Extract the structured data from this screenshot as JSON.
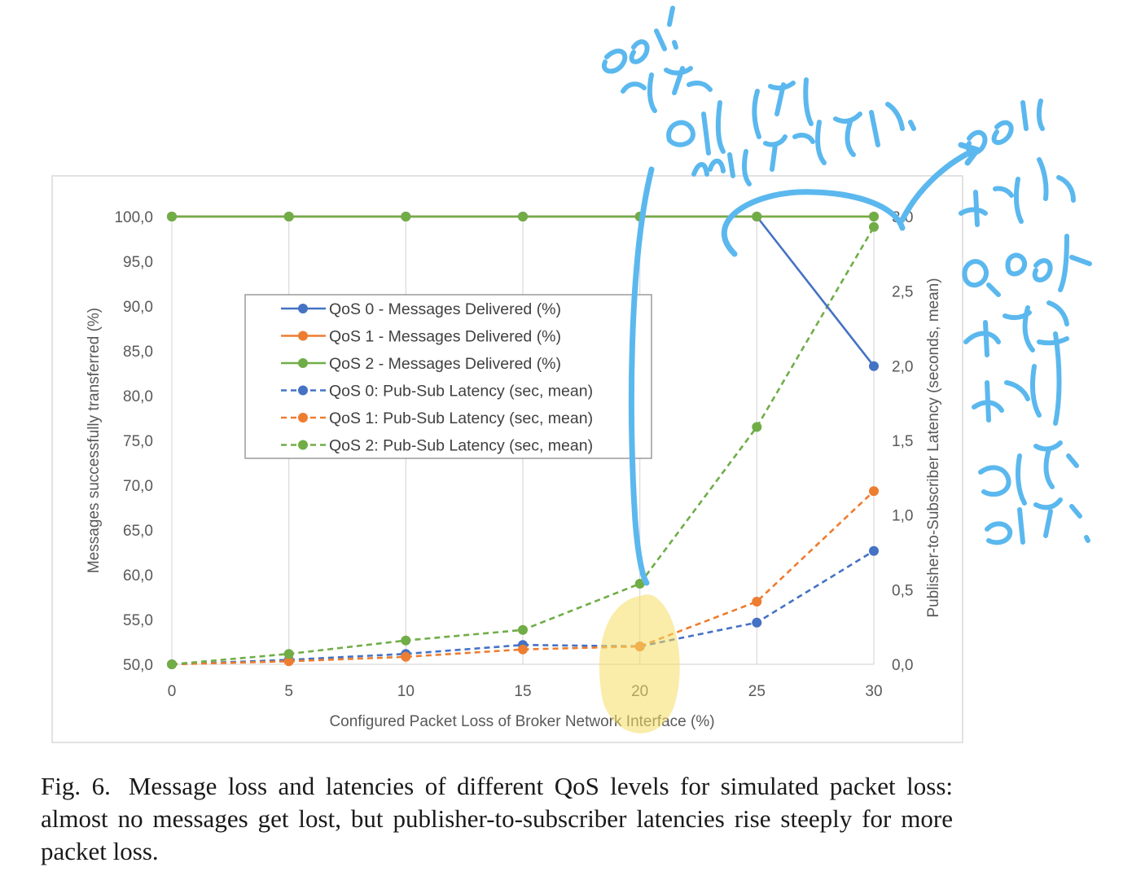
{
  "chart_data": {
    "type": "line",
    "x": [
      0,
      5,
      10,
      15,
      20,
      25,
      30
    ],
    "xlabel": "Configured Packet Loss of Broker Network Interface (%)",
    "ylabel": "Messages successfully transferred (%)",
    "y2label": "Publisher-to-Subscriber Latency (seconds, mean)",
    "x_ticks": [
      "0",
      "5",
      "10",
      "15",
      "20",
      "25",
      "30"
    ],
    "y_ticks": [
      "50,0",
      "55,0",
      "60,0",
      "65,0",
      "70,0",
      "75,0",
      "80,0",
      "85,0",
      "90,0",
      "95,0",
      "100,0"
    ],
    "y2_ticks": [
      "0,0",
      "0,5",
      "1,0",
      "1,5",
      "2,0",
      "2,5",
      "3,0"
    ],
    "xlim": [
      0,
      30
    ],
    "ylim": [
      50,
      100
    ],
    "y2lim": [
      0,
      3
    ],
    "grid": "vertical",
    "legend_position": "upper-left-center, boxed",
    "series": [
      {
        "name": "QoS 0 - Messages Delivered (%)",
        "axis": "left",
        "style": "solid",
        "color": "#4472c4",
        "values": [
          100,
          100,
          100,
          100,
          100,
          100,
          83.3
        ]
      },
      {
        "name": "QoS 1 - Messages Delivered (%)",
        "axis": "left",
        "style": "solid",
        "color": "#ed7d31",
        "values": [
          100,
          100,
          100,
          100,
          100,
          100,
          100
        ]
      },
      {
        "name": "QoS 2 - Messages Delivered (%)",
        "axis": "left",
        "style": "solid",
        "color": "#70ad47",
        "values": [
          100,
          100,
          100,
          100,
          100,
          100,
          100
        ]
      },
      {
        "name": "QoS 0: Pub-Sub Latency (sec, mean)",
        "axis": "right",
        "style": "dashed",
        "color": "#4472c4",
        "values": [
          0.0,
          0.03,
          0.07,
          0.13,
          0.12,
          0.28,
          0.76
        ]
      },
      {
        "name": "QoS 1: Pub-Sub Latency (sec, mean)",
        "axis": "right",
        "style": "dashed",
        "color": "#ed7d31",
        "values": [
          0.0,
          0.02,
          0.05,
          0.1,
          0.12,
          0.42,
          1.16
        ]
      },
      {
        "name": "QoS 2: Pub-Sub Latency (sec, mean)",
        "axis": "right",
        "style": "dashed",
        "color": "#70ad47",
        "values": [
          0.0,
          0.07,
          0.16,
          0.23,
          0.54,
          1.59,
          2.93
        ]
      }
    ]
  },
  "caption": {
    "label": "Fig. 6.",
    "text": "Message loss and latencies of different QoS levels for simulated packet loss: almost no messages get lost, but publisher-to-subscriber latencies rise steeply for more packet loss."
  },
  "annotations": {
    "handwriting_color": "#5bb8ee",
    "highlight_color": "#fbeaa0",
    "note_top": "20% 까지는 0에서 100%나 변함없다",
    "note_right": "20%부터는 QoS 1 을 사용할 경우 좋다"
  }
}
